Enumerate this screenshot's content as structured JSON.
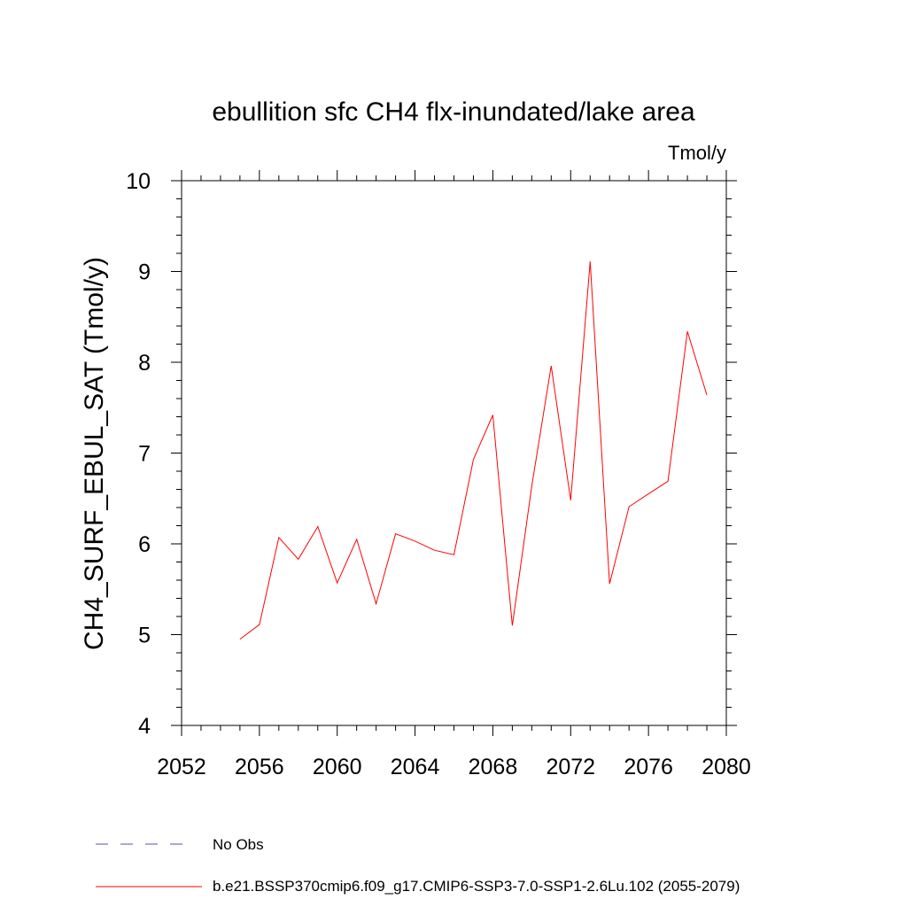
{
  "chart_data": {
    "type": "line",
    "title": "ebullition sfc CH4 flx-inundated/lake area",
    "units_label": "Tmol/y",
    "ylabel": "CH4_SURF_EBUL_SAT  (Tmol/y)",
    "xlabel": "",
    "xlim": [
      2052,
      2080
    ],
    "ylim": [
      4,
      10
    ],
    "x_ticks": [
      2052,
      2056,
      2060,
      2064,
      2068,
      2072,
      2076,
      2080
    ],
    "y_ticks": [
      4,
      5,
      6,
      7,
      8,
      9,
      10
    ],
    "grid": false,
    "series": [
      {
        "name": "b.e21.BSSP370cmip6.f09_g17.CMIP6-SSP3-7.0-SSP1-2.6Lu.102 (2055-2079)",
        "color": "#ff0000",
        "x": [
          2055,
          2056,
          2057,
          2058,
          2059,
          2060,
          2061,
          2062,
          2063,
          2064,
          2065,
          2066,
          2067,
          2068,
          2069,
          2070,
          2071,
          2072,
          2073,
          2074,
          2075,
          2076,
          2077,
          2078,
          2079
        ],
        "y": [
          4.95,
          5.11,
          6.07,
          5.83,
          6.19,
          5.57,
          6.05,
          5.34,
          6.11,
          6.03,
          5.93,
          5.88,
          6.93,
          7.42,
          5.1,
          6.64,
          7.96,
          6.48,
          9.11,
          5.56,
          6.41,
          6.55,
          6.69,
          8.34,
          7.64
        ]
      }
    ],
    "legend": {
      "placement": "bottom",
      "entries": [
        {
          "label": "No Obs",
          "color": "#5b4fa8",
          "style": "dashed"
        },
        {
          "label": "b.e21.BSSP370cmip6.f09_g17.CMIP6-SSP3-7.0-SSP1-2.6Lu.102 (2055-2079)",
          "color": "#ff0000",
          "style": "solid"
        }
      ]
    }
  }
}
